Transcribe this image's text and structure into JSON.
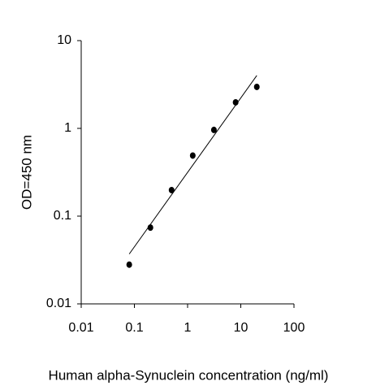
{
  "chart_data": {
    "type": "scatter",
    "x_label": "Human alpha-Synuclein  concentration (ng/ml)",
    "y_label": "OD=450 nm",
    "x": [
      0.08,
      0.2,
      0.5,
      1.25,
      3.125,
      8,
      20
    ],
    "values": [
      0.028,
      0.074,
      0.198,
      0.49,
      0.96,
      1.98,
      2.97
    ],
    "color": "#000000",
    "fit_line": {
      "x": [
        0.08,
        20
      ],
      "values": [
        0.037,
        4.0
      ],
      "color": "#000000"
    },
    "x_log": true,
    "y_log": true,
    "xlim": [
      0.01,
      100
    ],
    "ylim": [
      0.01,
      10
    ],
    "xticks": [
      0.01,
      0.1,
      1,
      10,
      100
    ],
    "yticks": [
      0.01,
      0.1,
      1,
      10
    ]
  }
}
